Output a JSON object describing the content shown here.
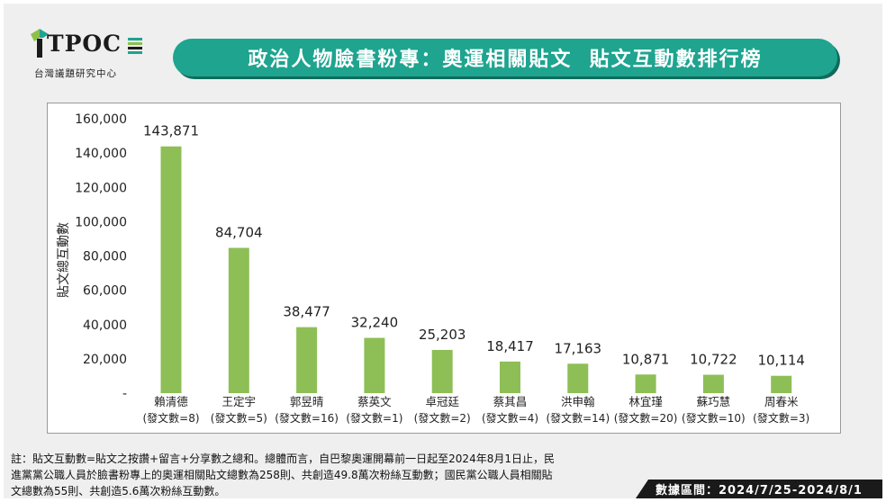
{
  "logo": {
    "word": "TPOC",
    "subtitle": "台灣議題研究中心",
    "colors": {
      "green": "#8ec04a",
      "teal": "#1ea48f",
      "dark": "#1b1b1b"
    }
  },
  "header": {
    "title": "政治人物臉書粉專：奧運相關貼文  貼文互動數排行榜"
  },
  "chart_data": {
    "type": "bar",
    "title": "",
    "ylabel": "貼文總互動數",
    "xlabel": "",
    "ylim": [
      0,
      160000
    ],
    "yticks": [
      0,
      20000,
      40000,
      60000,
      80000,
      100000,
      120000,
      140000,
      160000
    ],
    "ytick_labels": [
      "-",
      "20,000",
      "40,000",
      "60,000",
      "80,000",
      "100,000",
      "120,000",
      "140,000",
      "160,000"
    ],
    "grid": false,
    "bar_color": "#8dbf56",
    "categories": [
      "賴清德",
      "王定宇",
      "郭昱晴",
      "蔡英文",
      "卓冠廷",
      "蔡其昌",
      "洪申翰",
      "林宜瑾",
      "蘇巧慧",
      "周春米"
    ],
    "category_notes": [
      "(發文數=8)",
      "(發文數=5)",
      "(發文數=16)",
      "(發文數=1)",
      "(發文數=2)",
      "(發文數=4)",
      "(發文數=14)",
      "(發文數=20)",
      "(發文數=10)",
      "(發文數=3)"
    ],
    "values": [
      143871,
      84704,
      38477,
      32240,
      25203,
      18417,
      17163,
      10871,
      10722,
      10114
    ],
    "value_labels": [
      "143,871",
      "84,704",
      "38,477",
      "32,240",
      "25,203",
      "18,417",
      "17,163",
      "10,871",
      "10,722",
      "10,114"
    ]
  },
  "footer": {
    "note_lines": [
      "註：貼文互動數=貼文之按讚+留言+分享數之總和。總體而言，自巴黎奧運開幕前一日起至2024年8月1日止，民",
      "進黨黨公職人員於臉書粉專上的奧運相關貼文總數為258則、共創造49.8萬次粉絲互動數；國民黨公職人員相關貼",
      "文總數為55則、共創造5.6萬次粉絲互動數。"
    ],
    "date_range": "數據區間：2024/7/25-2024/8/1"
  }
}
